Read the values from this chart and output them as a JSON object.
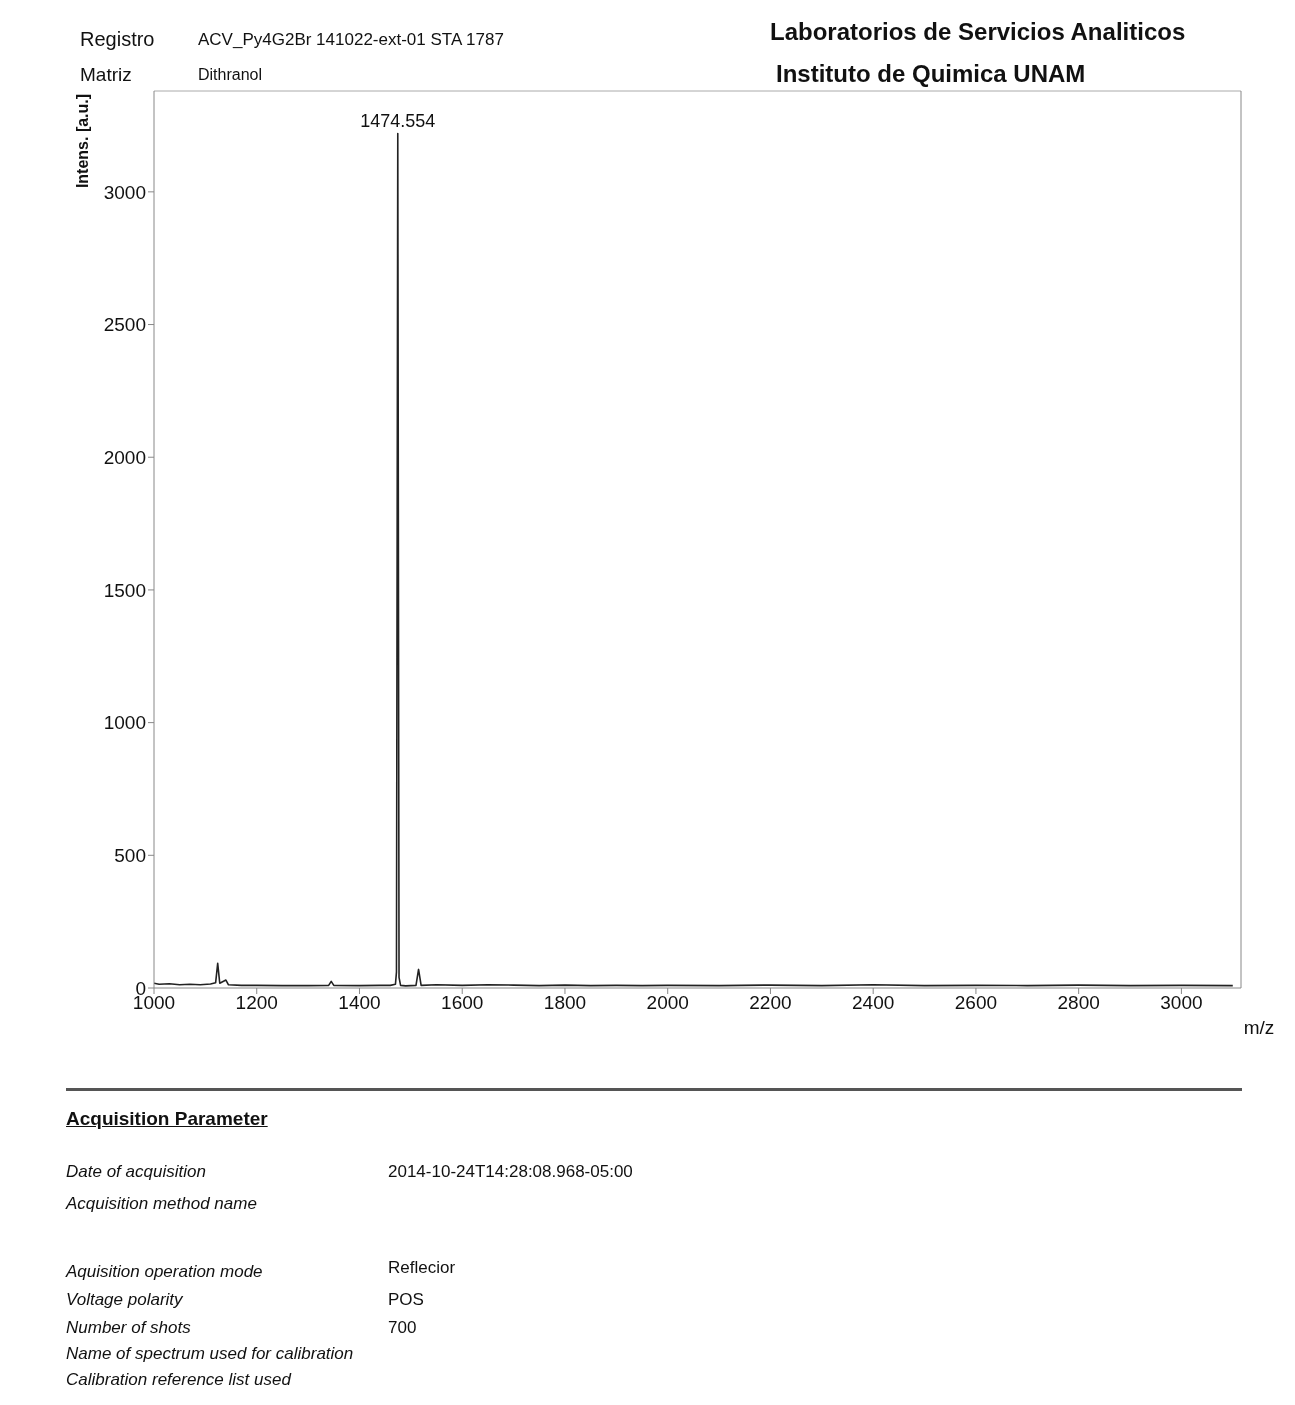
{
  "chart_data": {
    "type": "line",
    "title": "Laboratorios de Servicios Analiticos",
    "subtitle": "Instituto de Quimica UNAM",
    "xlabel": "m/z",
    "ylabel": "Intens. [a.u.]",
    "annotations": [
      "Registro",
      "ACV_Py4G2Br 141022-ext-01 STA 1787",
      "Matriz",
      "Dithranol",
      "Acquisition Parameter",
      "Date of acquisition",
      "2014-10-24T14:28:08.968-05:00",
      "Acquisition method name",
      "Aquisition operation mode",
      "Reflecior",
      "Voltage polarity",
      "POS",
      "Number of shots",
      "700",
      "Name of spectrum used for calibration",
      "Calibration reference list used",
      {
        "text": "1474.554",
        "x": 1474.554,
        "y": 3220
      }
    ],
    "series": [
      {
        "color": "#222222",
        "x": [
          1000,
          1010,
          1030,
          1050,
          1070,
          1090,
          1110,
          1120,
          1124,
          1128,
          1140,
          1145,
          1170,
          1200,
          1250,
          1300,
          1340,
          1345,
          1350,
          1400,
          1440,
          1460,
          1470,
          1472,
          1474.554,
          1477,
          1480,
          1490,
          1510,
          1515,
          1520,
          1550,
          1600,
          1650,
          1700,
          1750,
          1800,
          1850,
          1900,
          1950,
          2000,
          2100,
          2200,
          2300,
          2400,
          2500,
          2600,
          2700,
          2800,
          2900,
          3000,
          3100
        ],
        "values": [
          18,
          14,
          16,
          12,
          14,
          12,
          15,
          20,
          93,
          18,
          30,
          12,
          10,
          10,
          9,
          9,
          10,
          25,
          10,
          9,
          10,
          10,
          14,
          60,
          3220,
          40,
          10,
          8,
          10,
          70,
          10,
          12,
          10,
          12,
          11,
          9,
          11,
          9,
          10,
          9,
          10,
          9,
          11,
          9,
          12,
          9,
          10,
          9,
          11,
          9,
          10,
          9
        ]
      }
    ],
    "xlim": [
      1000,
      3116
    ],
    "ylim": [
      0,
      3380
    ],
    "xticks": [
      1000,
      1200,
      1400,
      1600,
      1800,
      2000,
      2200,
      2400,
      2600,
      2800,
      3000
    ],
    "yticks": [
      0,
      500,
      1000,
      1500,
      2000,
      2500,
      3000
    ],
    "grid": false,
    "legend": false,
    "marker": "none",
    "line_style": "solid"
  }
}
